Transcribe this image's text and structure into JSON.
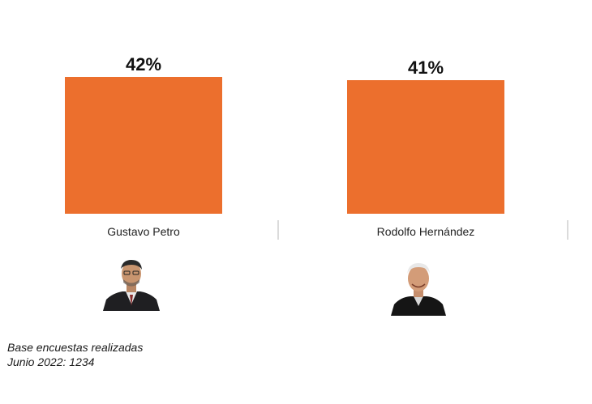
{
  "chart_data": {
    "type": "bar",
    "categories": [
      "Gustavo Petro",
      "Rodolfo Hernández"
    ],
    "values": [
      42,
      41
    ],
    "value_labels": [
      "42%",
      "41%"
    ],
    "bar_color": "#EC6F2D",
    "grid": false
  },
  "candidates": [
    {
      "name": "Gustavo Petro",
      "photo_icon": "candidate-portrait-icon"
    },
    {
      "name": "Rodolfo Hernández",
      "photo_icon": "candidate-portrait-icon"
    }
  ],
  "note": {
    "line1": "Base encuestas realizadas",
    "line2": "Junio 2022: 1234"
  }
}
